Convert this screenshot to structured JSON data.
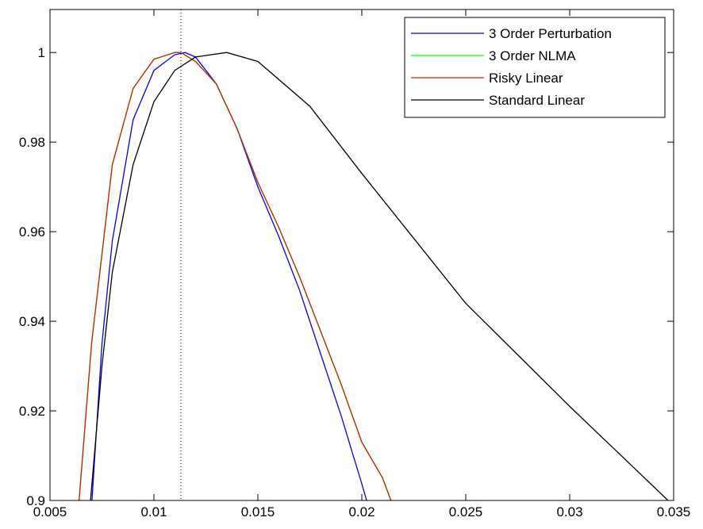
{
  "chart_data": {
    "type": "line",
    "xlim": [
      0.005,
      0.035
    ],
    "xticks": [
      0.005,
      0.01,
      0.015,
      0.02,
      0.025,
      0.03,
      0.035
    ],
    "ylim": [
      0.9,
      1.0096
    ],
    "yticks": [
      0.9,
      0.92,
      0.94,
      0.96,
      0.98,
      1
    ],
    "reference_x": 0.0113,
    "legend": "upper right",
    "series": [
      {
        "name": "3 Order Perturbation",
        "color": "#0000ff",
        "x": [
          0.00702,
          0.0075,
          0.008,
          0.009,
          0.01,
          0.011,
          0.0115,
          0.012,
          0.013,
          0.014,
          0.015,
          0.016,
          0.017,
          0.018,
          0.019,
          0.02,
          0.02023
        ],
        "values": [
          0.9,
          0.935,
          0.958,
          0.985,
          0.996,
          0.9995,
          1.0,
          0.999,
          0.993,
          0.983,
          0.97,
          0.959,
          0.947,
          0.933,
          0.919,
          0.9037,
          0.9
        ]
      },
      {
        "name": "3 Order NLMA",
        "color": "#00ff00",
        "x": [
          0.0064,
          0.007,
          0.008,
          0.009,
          0.01,
          0.011,
          0.0113,
          0.012,
          0.013,
          0.014,
          0.015,
          0.016,
          0.017,
          0.018,
          0.019,
          0.02,
          0.021,
          0.0214
        ],
        "values": [
          0.9,
          0.935,
          0.975,
          0.992,
          0.9985,
          1.0,
          1.0,
          0.998,
          0.993,
          0.983,
          0.971,
          0.961,
          0.95,
          0.938,
          0.926,
          0.913,
          0.905,
          0.9
        ]
      },
      {
        "name": "Risky Linear",
        "color": "#cc2200",
        "x": [
          0.0064,
          0.007,
          0.008,
          0.009,
          0.01,
          0.011,
          0.0113,
          0.012,
          0.013,
          0.014,
          0.015,
          0.016,
          0.017,
          0.018,
          0.019,
          0.02,
          0.021,
          0.0214
        ],
        "values": [
          0.9,
          0.935,
          0.975,
          0.992,
          0.9985,
          1.0,
          1.0,
          0.998,
          0.993,
          0.983,
          0.971,
          0.961,
          0.95,
          0.938,
          0.926,
          0.913,
          0.905,
          0.9
        ]
      },
      {
        "name": "Standard Linear",
        "color": "#000000",
        "x": [
          0.00695,
          0.0075,
          0.008,
          0.009,
          0.01,
          0.011,
          0.012,
          0.0135,
          0.015,
          0.0175,
          0.02,
          0.025,
          0.03,
          0.03473
        ],
        "values": [
          0.9,
          0.93,
          0.951,
          0.975,
          0.989,
          0.996,
          0.999,
          1.0,
          0.998,
          0.988,
          0.973,
          0.944,
          0.921,
          0.9
        ]
      }
    ]
  }
}
